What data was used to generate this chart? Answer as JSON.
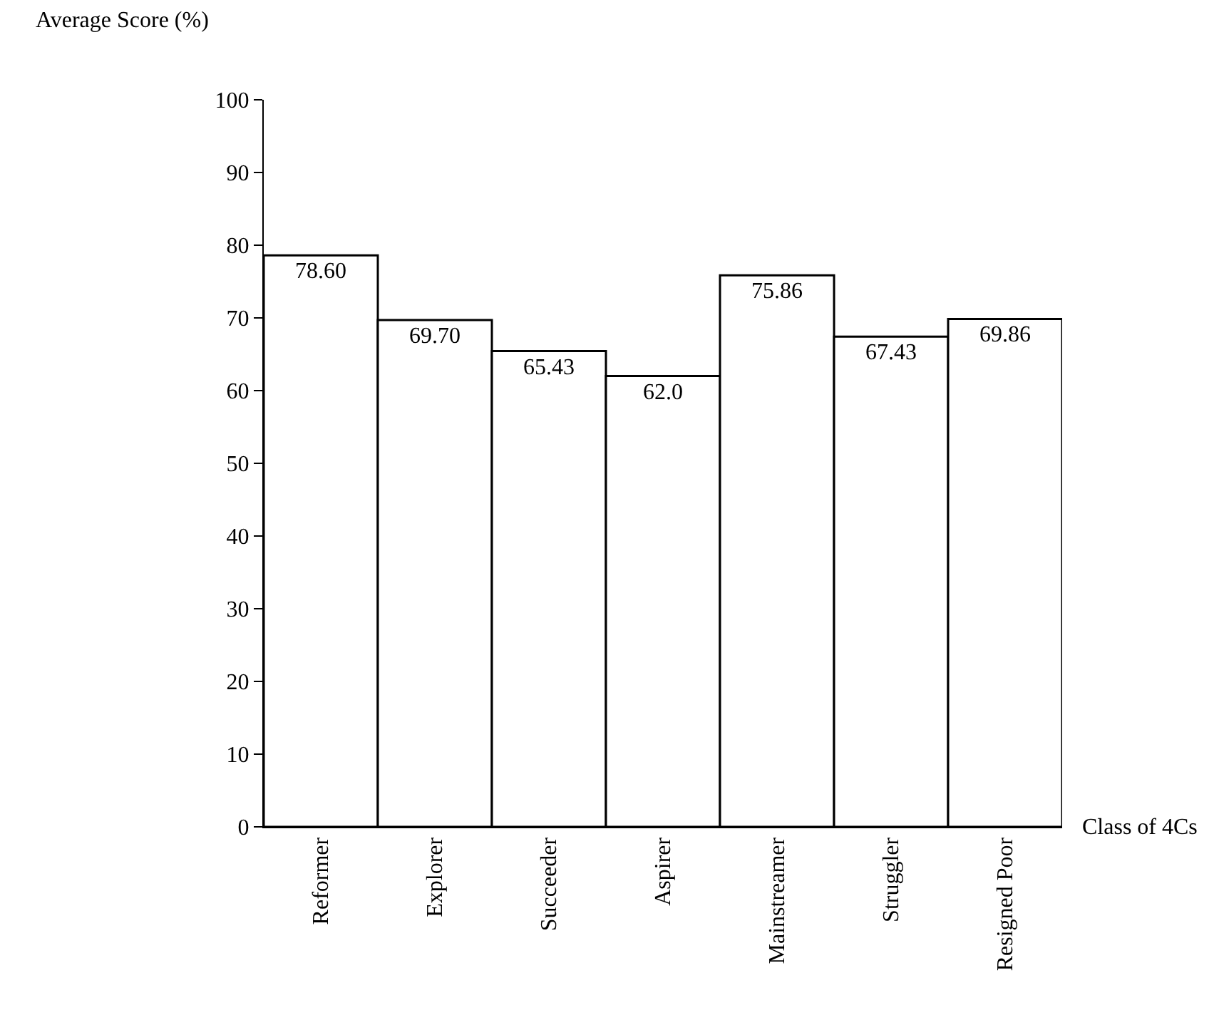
{
  "chart_data": {
    "type": "bar",
    "xlabel": "Class of 4Cs",
    "ylabel": "Average Score (%)",
    "categories": [
      "Reformer",
      "Explorer",
      "Succeeder",
      "Aspirer",
      "Mainstreamer",
      "Struggler",
      "Resigned Poor"
    ],
    "values": [
      78.6,
      69.7,
      65.43,
      62.0,
      75.86,
      67.43,
      69.86
    ],
    "value_labels": [
      "78.60",
      "69.70",
      "65.43",
      "62.0",
      "75.86",
      "67.43",
      "69.86"
    ],
    "color": "#ffffff",
    "ylim": [
      0,
      100
    ],
    "yticks": [
      0,
      10,
      20,
      30,
      40,
      50,
      60,
      70,
      80,
      90,
      100
    ],
    "grid": false,
    "legend": false
  }
}
